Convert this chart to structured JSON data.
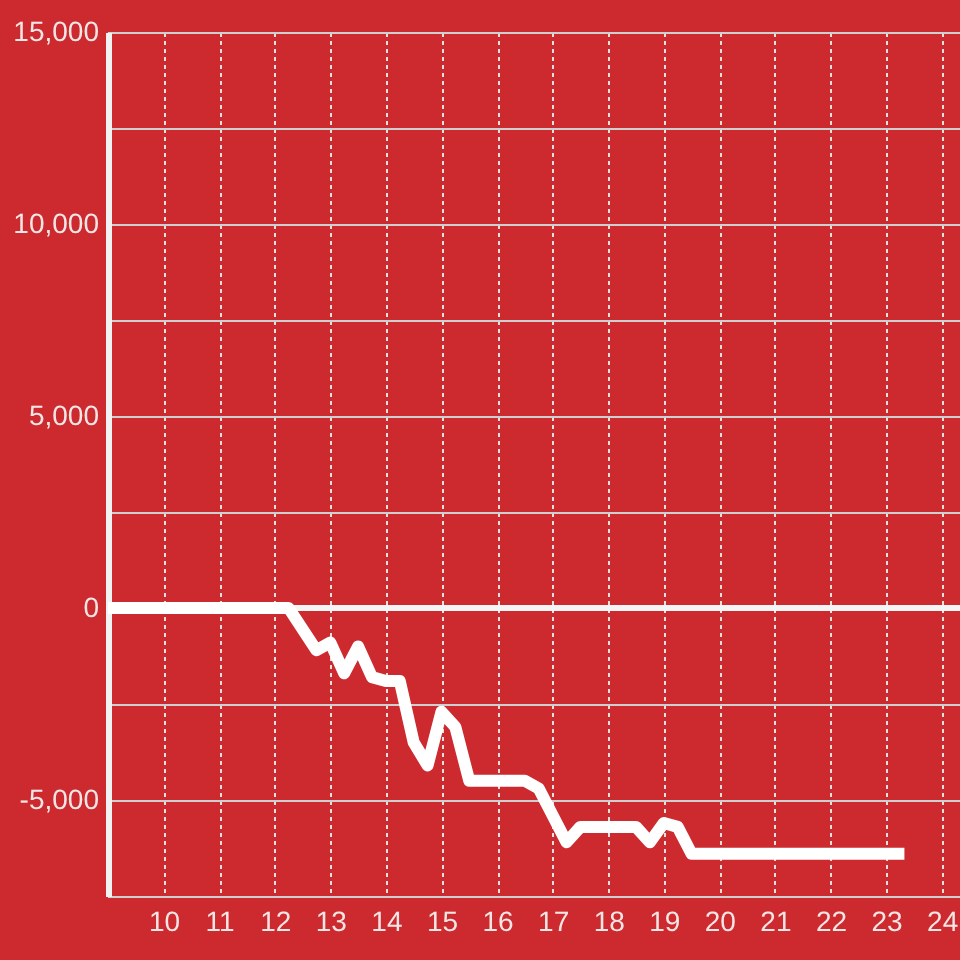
{
  "chart_data": {
    "type": "line",
    "x": [
      9,
      12.25,
      12.75,
      13,
      13.25,
      13.5,
      13.75,
      14,
      14.25,
      14.5,
      14.75,
      15,
      15.25,
      15.5,
      16.5,
      16.75,
      17.25,
      17.5,
      18.5,
      18.75,
      19,
      19.25,
      19.5,
      23.33
    ],
    "series": [
      {
        "color": "#ffffff",
        "values": [
          0,
          0,
          -1100,
          -900,
          -1700,
          -1000,
          -1800,
          -1900,
          -1900,
          -3500,
          -4100,
          -2700,
          -3100,
          -4500,
          -4500,
          -4700,
          -6100,
          -5700,
          -5700,
          -6100,
          -5600,
          -5700,
          -6400,
          -6400
        ]
      }
    ],
    "xlim": [
      9,
      24.33
    ],
    "xticks": [
      10,
      11,
      12,
      13,
      14,
      15,
      16,
      17,
      18,
      19,
      20,
      21,
      22,
      23,
      24
    ],
    "ylim": [
      -7500,
      15000
    ],
    "yticks": [
      {
        "value": -7500,
        "label": null
      },
      {
        "value": -5000,
        "label": "-5,000"
      },
      {
        "value": -2500,
        "label": null
      },
      0,
      {
        "value": 2500,
        "label": null
      },
      {
        "value": 5000,
        "label": "5,000"
      },
      {
        "value": 7500,
        "label": null
      },
      {
        "value": 10000,
        "label": "10,000"
      },
      {
        "value": 12500,
        "label": null
      },
      {
        "value": 15000,
        "label": "15,000"
      }
    ],
    "grid": true,
    "line_style": "solid",
    "ref_lines": [
      {
        "axis": "y",
        "value": 0,
        "color": "#f5f5f5"
      }
    ]
  }
}
